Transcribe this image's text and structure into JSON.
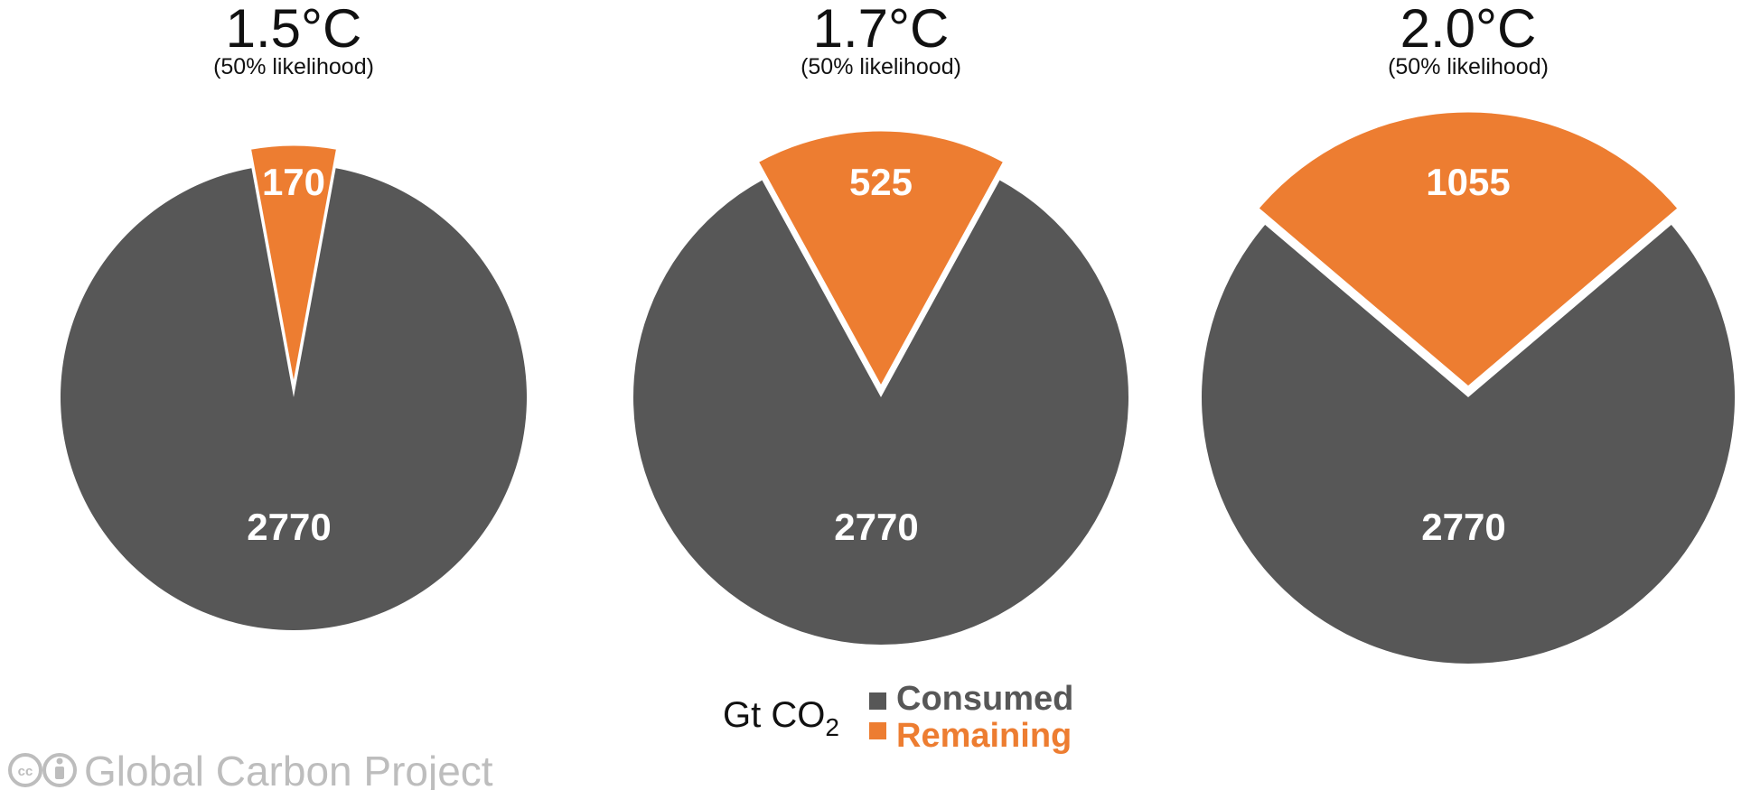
{
  "chart_data": [
    {
      "type": "pie",
      "title": "1.5°C",
      "subtitle": "(50% likelihood)",
      "slices": [
        {
          "name": "Consumed",
          "value": 2770
        },
        {
          "name": "Remaining",
          "value": 170
        }
      ]
    },
    {
      "type": "pie",
      "title": "1.7°C",
      "subtitle": "(50% likelihood)",
      "slices": [
        {
          "name": "Consumed",
          "value": 2770
        },
        {
          "name": "Remaining",
          "value": 525
        }
      ]
    },
    {
      "type": "pie",
      "title": "2.0°C",
      "subtitle": "(50% likelihood)",
      "slices": [
        {
          "name": "Consumed",
          "value": 2770
        },
        {
          "name": "Remaining",
          "value": 1055
        }
      ]
    }
  ],
  "legend": {
    "unit_main": "Gt CO",
    "unit_sub": "2",
    "items": [
      {
        "label": "Consumed",
        "color": "#575757"
      },
      {
        "label": "Remaining",
        "color": "#ed7d31"
      }
    ]
  },
  "footer": {
    "cc_icon": "cc-icon",
    "by_icon": "attribution-icon",
    "text": "Global Carbon Project"
  },
  "colors": {
    "consumed": "#575757",
    "remaining": "#ed7d31",
    "footer": "#bdbdbd"
  }
}
